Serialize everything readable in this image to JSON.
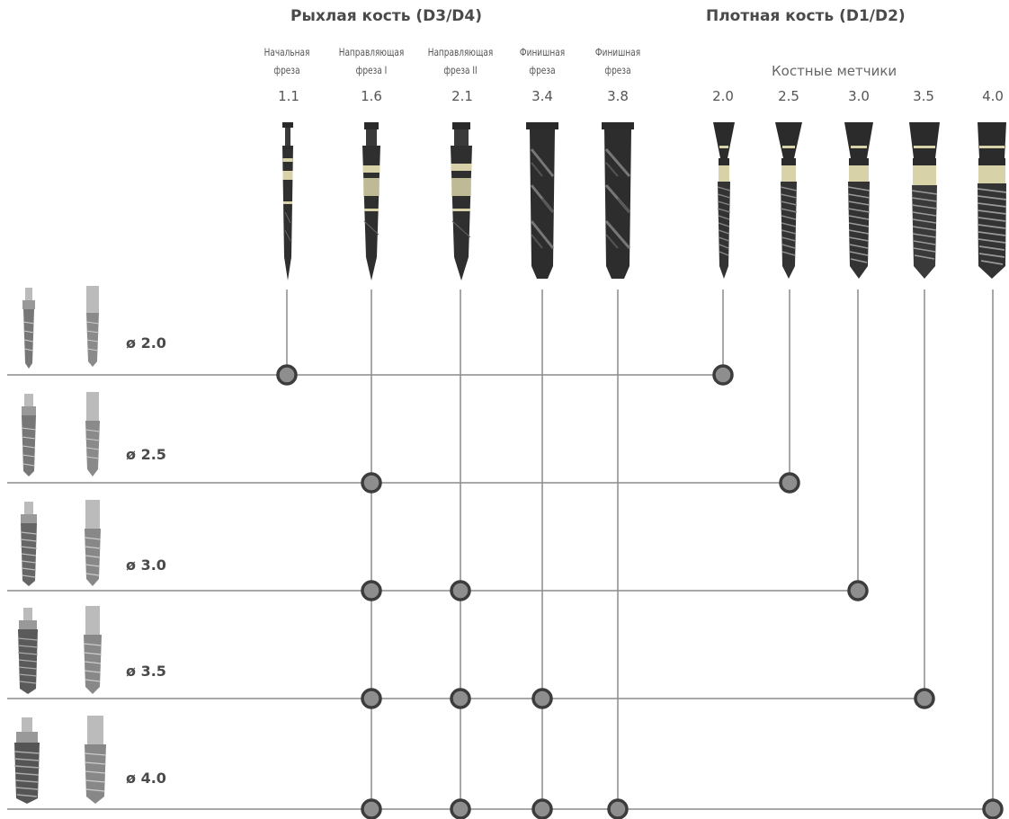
{
  "groups": {
    "soft": "Рыхлая кость (D3/D4)",
    "dense": "Плотная кость (D1/D2)"
  },
  "taps_caption": "Костные метчики",
  "columns": [
    {
      "id": "drill-1-1",
      "kind": "drill",
      "label_1": "Начальная",
      "label_2": "фреза",
      "value": "1.1"
    },
    {
      "id": "drill-1-6",
      "kind": "drill",
      "label_1": "Направляющая",
      "label_2": "фреза I",
      "value": "1.6"
    },
    {
      "id": "drill-2-1",
      "kind": "drill",
      "label_1": "Направляющая",
      "label_2": "фреза II",
      "value": "2.1"
    },
    {
      "id": "drill-3-4",
      "kind": "drill",
      "label_1": "Финишная",
      "label_2": "фреза",
      "value": "3.4"
    },
    {
      "id": "drill-3-8",
      "kind": "drill",
      "label_1": "Финишная",
      "label_2": "фреза",
      "value": "3.8"
    },
    {
      "id": "tap-2-0",
      "kind": "tap",
      "value": "2.0"
    },
    {
      "id": "tap-2-5",
      "kind": "tap",
      "value": "2.5"
    },
    {
      "id": "tap-3-0",
      "kind": "tap",
      "value": "3.0"
    },
    {
      "id": "tap-3-5",
      "kind": "tap",
      "value": "3.5"
    },
    {
      "id": "tap-4-0",
      "kind": "tap",
      "value": "4.0"
    }
  ],
  "rows": [
    {
      "label": "ø 2.0",
      "drills": [
        "1.1"
      ],
      "tap": "2.0"
    },
    {
      "label": "ø 2.5",
      "drills": [
        "1.6"
      ],
      "tap": "2.5"
    },
    {
      "label": "ø 3.0",
      "drills": [
        "1.6",
        "2.1"
      ],
      "tap": "3.0"
    },
    {
      "label": "ø 3.5",
      "drills": [
        "1.6",
        "2.1",
        "3.4"
      ],
      "tap": "3.5"
    },
    {
      "label": "ø 4.0",
      "drills": [
        "1.6",
        "2.1",
        "3.4",
        "3.8"
      ],
      "tap": "4.0"
    }
  ],
  "colors": {
    "line": "#8c8c8c",
    "node_fill": "#8e8e8e",
    "node_stroke": "#3c3c3c",
    "tool_dark": "#2a2a2a",
    "tool_band": "#d8d2a8"
  }
}
